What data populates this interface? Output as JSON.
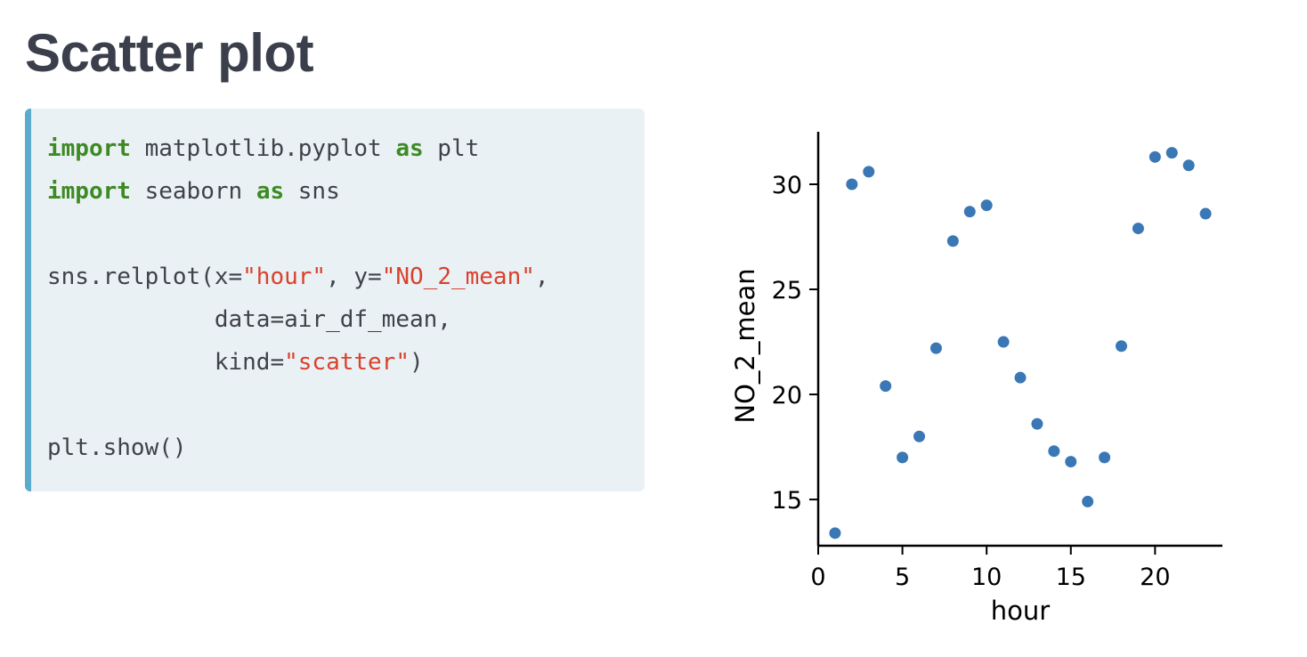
{
  "page": {
    "title": "Scatter plot"
  },
  "code": {
    "lines": [
      [
        {
          "t": "import",
          "k": "kw"
        },
        {
          "t": " matplotlib.pyplot ",
          "k": "plain"
        },
        {
          "t": "as",
          "k": "kw"
        },
        {
          "t": " plt",
          "k": "plain"
        }
      ],
      [
        {
          "t": "import",
          "k": "kw"
        },
        {
          "t": " seaborn ",
          "k": "plain"
        },
        {
          "t": "as",
          "k": "kw"
        },
        {
          "t": " sns",
          "k": "plain"
        }
      ],
      [],
      [
        {
          "t": "sns.relplot(x=",
          "k": "plain"
        },
        {
          "t": "\"hour\"",
          "k": "str"
        },
        {
          "t": ", y=",
          "k": "plain"
        },
        {
          "t": "\"NO_2_mean\"",
          "k": "str"
        },
        {
          "t": ",",
          "k": "plain"
        }
      ],
      [
        {
          "t": "            data=air_df_mean,",
          "k": "plain"
        }
      ],
      [
        {
          "t": "            kind=",
          "k": "plain"
        },
        {
          "t": "\"scatter\"",
          "k": "str"
        },
        {
          "t": ")",
          "k": "plain"
        }
      ],
      [],
      [
        {
          "t": "plt.show()",
          "k": "plain"
        }
      ]
    ]
  },
  "chart_data": {
    "type": "scatter",
    "xlabel": "hour",
    "ylabel": "NO_2_mean",
    "xlim": [
      0,
      24
    ],
    "ylim": [
      12.8,
      32.5
    ],
    "xticks": [
      0,
      5,
      10,
      15,
      20
    ],
    "yticks": [
      15,
      20,
      25,
      30
    ],
    "grid": false,
    "point_color": "#3a77b5",
    "x": [
      1,
      2,
      3,
      4,
      5,
      6,
      7,
      8,
      9,
      10,
      11,
      12,
      13,
      14,
      15,
      16,
      17,
      18,
      19,
      20,
      21,
      22,
      23
    ],
    "y": [
      13.4,
      30.0,
      30.6,
      20.4,
      17.0,
      18.0,
      22.2,
      27.3,
      28.7,
      29.0,
      22.5,
      20.8,
      18.6,
      17.3,
      16.8,
      14.9,
      17.0,
      22.3,
      27.9,
      31.3,
      31.5,
      30.9,
      28.6
    ]
  }
}
